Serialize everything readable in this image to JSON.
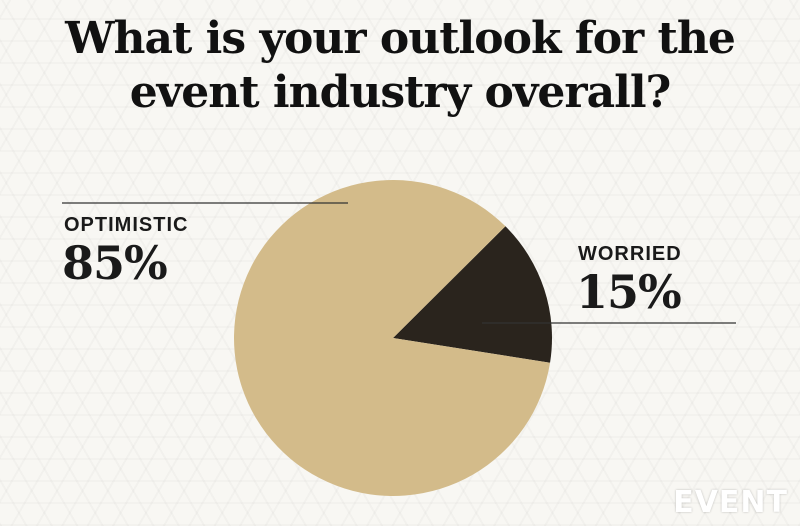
{
  "title_lines": [
    "What is your outlook for the",
    "event industry overall?"
  ],
  "chart_data": {
    "type": "pie",
    "title": "What is your outlook for the event industry overall?",
    "slices": [
      {
        "label": "OPTIMISTIC",
        "value": 85,
        "display": "85%",
        "color": "#d3bb8a"
      },
      {
        "label": "WORRIED",
        "value": 15,
        "display": "15%",
        "color": "#2a241d"
      }
    ]
  },
  "logo": "EVENT"
}
